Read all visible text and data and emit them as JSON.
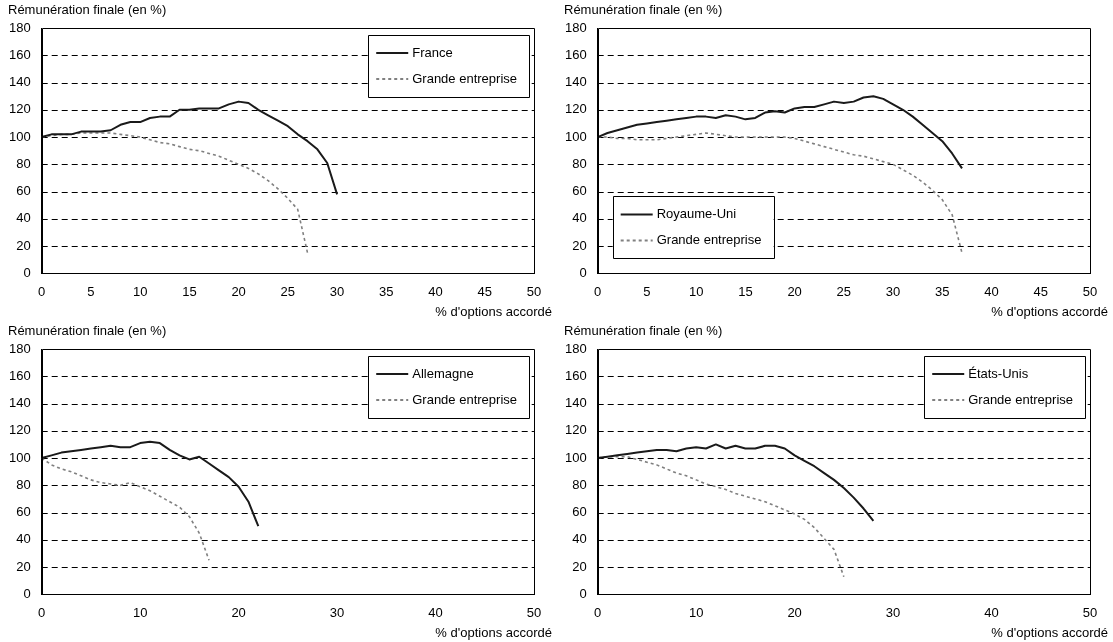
{
  "chart_data": [
    {
      "type": "line",
      "ylabel": "Rémunération finale (en %)",
      "xlabel": "% d'options accordé",
      "xlim": [
        0,
        50
      ],
      "xticks": [
        0,
        5,
        10,
        15,
        20,
        25,
        30,
        35,
        40,
        45,
        50
      ],
      "ylim": [
        0,
        180
      ],
      "yticks": [
        0,
        20,
        40,
        60,
        80,
        100,
        120,
        140,
        160,
        180
      ],
      "grid": "y",
      "legend": "top right",
      "marker": "none",
      "series": [
        {
          "name": "France",
          "color": "#1a1a1a",
          "line_style": "solid",
          "x": [
            0,
            1,
            2,
            3,
            4,
            5,
            6,
            7,
            8,
            9,
            10,
            11,
            12,
            13,
            14,
            15,
            16,
            17,
            18,
            19,
            20,
            21,
            22,
            23,
            24,
            25,
            26,
            27,
            28,
            29,
            30
          ],
          "values": [
            100,
            102,
            102,
            102,
            104,
            104,
            104,
            105,
            109,
            111,
            111,
            114,
            115,
            115,
            120,
            120,
            121,
            121,
            121,
            124,
            126,
            125,
            120,
            116,
            112,
            108,
            102,
            97,
            91,
            81,
            58
          ]
        },
        {
          "name": "Grande entreprise",
          "color": "#808080",
          "line_style": "dashed",
          "x": [
            0,
            1,
            2,
            3,
            4,
            5,
            6,
            7,
            8,
            9,
            10,
            11,
            12,
            13,
            14,
            15,
            16,
            17,
            18,
            19,
            20,
            21,
            22,
            23,
            24,
            25,
            26,
            27
          ],
          "values": [
            100,
            101,
            102,
            102,
            103,
            103,
            103,
            103,
            102,
            101,
            100,
            98,
            96,
            95,
            93,
            91,
            90,
            88,
            86,
            83,
            80,
            77,
            73,
            68,
            62,
            55,
            47,
            15
          ]
        }
      ]
    },
    {
      "type": "line",
      "ylabel": "Rémunération finale (en %)",
      "xlabel": "% d'options accordé",
      "xlim": [
        0,
        50
      ],
      "xticks": [
        0,
        5,
        10,
        15,
        20,
        25,
        30,
        35,
        40,
        45,
        50
      ],
      "ylim": [
        0,
        180
      ],
      "yticks": [
        0,
        20,
        40,
        60,
        80,
        100,
        120,
        140,
        160,
        180
      ],
      "grid": "y",
      "legend": "bottom left",
      "marker": "none",
      "series": [
        {
          "name": "Royaume-Uni",
          "color": "#1a1a1a",
          "line_style": "solid",
          "x": [
            0,
            1,
            2,
            3,
            4,
            5,
            6,
            7,
            8,
            9,
            10,
            11,
            12,
            13,
            14,
            15,
            16,
            17,
            18,
            19,
            20,
            21,
            22,
            23,
            24,
            25,
            26,
            27,
            28,
            29,
            30,
            31,
            32,
            33,
            34,
            35,
            36,
            37
          ],
          "values": [
            100,
            103,
            105,
            107,
            109,
            110,
            111,
            112,
            113,
            114,
            115,
            115,
            114,
            116,
            115,
            113,
            114,
            118,
            119,
            118,
            121,
            122,
            122,
            124,
            126,
            125,
            126,
            129,
            130,
            128,
            124,
            120,
            115,
            109,
            103,
            97,
            88,
            77
          ]
        },
        {
          "name": "Grande entreprise",
          "color": "#808080",
          "line_style": "dashed",
          "x": [
            0,
            1,
            2,
            3,
            4,
            5,
            6,
            7,
            8,
            9,
            10,
            11,
            12,
            13,
            14,
            15,
            16,
            17,
            18,
            19,
            20,
            21,
            22,
            23,
            24,
            25,
            26,
            27,
            28,
            29,
            30,
            31,
            32,
            33,
            34,
            35,
            36,
            37
          ],
          "values": [
            100,
            100,
            99,
            99,
            98,
            98,
            98,
            99,
            100,
            101,
            102,
            103,
            102,
            101,
            100,
            100,
            100,
            100,
            100,
            100,
            99,
            97,
            95,
            93,
            91,
            89,
            87,
            86,
            84,
            82,
            80,
            76,
            72,
            67,
            61,
            54,
            43,
            15
          ]
        }
      ]
    },
    {
      "type": "line",
      "ylabel": "Rémunération finale (en %)",
      "xlabel": "% d'options accordé",
      "xlim": [
        0,
        50
      ],
      "xticks": [
        0,
        10,
        20,
        30,
        40,
        50
      ],
      "ylim": [
        0,
        180
      ],
      "yticks": [
        0,
        20,
        40,
        60,
        80,
        100,
        120,
        140,
        160,
        180
      ],
      "grid": "y",
      "legend": "top right",
      "marker": "none",
      "series": [
        {
          "name": "Allemagne",
          "color": "#1a1a1a",
          "line_style": "solid",
          "x": [
            0,
            1,
            2,
            3,
            4,
            5,
            6,
            7,
            8,
            9,
            10,
            11,
            12,
            13,
            14,
            15,
            16,
            17,
            18,
            19,
            20,
            21,
            22
          ],
          "values": [
            100,
            102,
            104,
            105,
            106,
            107,
            108,
            109,
            108,
            108,
            111,
            112,
            111,
            106,
            102,
            99,
            101,
            96,
            91,
            86,
            79,
            68,
            50
          ]
        },
        {
          "name": "Grande entreprise",
          "color": "#808080",
          "line_style": "dashed",
          "x": [
            0,
            1,
            2,
            3,
            4,
            5,
            6,
            7,
            8,
            9,
            10,
            11,
            12,
            13,
            14,
            15,
            16,
            17
          ],
          "values": [
            100,
            95,
            92,
            90,
            87,
            84,
            82,
            81,
            80,
            82,
            79,
            76,
            72,
            68,
            64,
            57,
            45,
            25
          ]
        }
      ]
    },
    {
      "type": "line",
      "ylabel": "Rémunération finale (en %)",
      "xlabel": "% d'options accordé",
      "xlim": [
        0,
        50
      ],
      "xticks": [
        0,
        10,
        20,
        30,
        40,
        50
      ],
      "ylim": [
        0,
        180
      ],
      "yticks": [
        0,
        20,
        40,
        60,
        80,
        100,
        120,
        140,
        160,
        180
      ],
      "grid": "y",
      "legend": "top right",
      "marker": "none",
      "series": [
        {
          "name": "États-Unis",
          "color": "#1a1a1a",
          "line_style": "solid",
          "x": [
            0,
            1,
            2,
            3,
            4,
            5,
            6,
            7,
            8,
            9,
            10,
            11,
            12,
            13,
            14,
            15,
            16,
            17,
            18,
            19,
            20,
            21,
            22,
            23,
            24,
            25,
            26,
            27,
            28
          ],
          "values": [
            100,
            101,
            102,
            103,
            104,
            105,
            106,
            106,
            105,
            107,
            108,
            107,
            110,
            107,
            109,
            107,
            107,
            109,
            109,
            107,
            102,
            98,
            94,
            89,
            84,
            78,
            71,
            63,
            54
          ]
        },
        {
          "name": "Grande entreprise",
          "color": "#808080",
          "line_style": "dashed",
          "x": [
            0,
            1,
            2,
            3,
            4,
            5,
            6,
            7,
            8,
            9,
            10,
            11,
            12,
            13,
            14,
            15,
            16,
            17,
            18,
            19,
            20,
            21,
            22,
            23,
            24,
            25
          ],
          "values": [
            100,
            101,
            101,
            101,
            99,
            97,
            95,
            92,
            89,
            87,
            84,
            81,
            79,
            77,
            74,
            72,
            70,
            68,
            65,
            62,
            59,
            55,
            49,
            41,
            33,
            13
          ]
        }
      ]
    }
  ]
}
